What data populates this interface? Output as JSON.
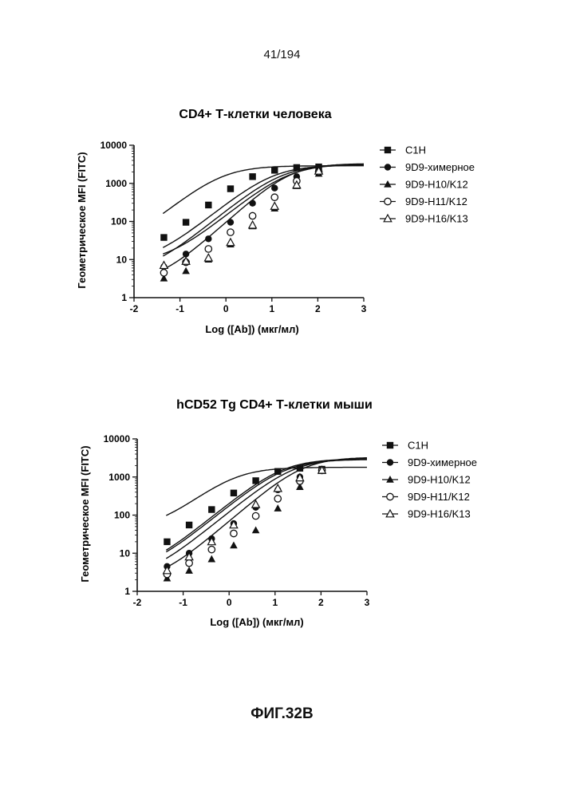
{
  "page_number": "41/194",
  "figure_label": "ФИГ.32В",
  "chart_data": [
    {
      "type": "line",
      "title": "CD4+ Т-клетки человека",
      "xlabel": "Log ([Ab]) (мкг/мл)",
      "ylabel": "Геометрическое MFI (FITC)",
      "xlim": [
        -2,
        3
      ],
      "ylim": [
        1,
        10000
      ],
      "yscale": "log",
      "xticks": [
        "-2",
        "-1",
        "0",
        "1",
        "2",
        "3"
      ],
      "yticks": [
        "1",
        "10",
        "100",
        "1000",
        "10000"
      ],
      "legend_position": "right",
      "series": [
        {
          "name": "C1H",
          "marker": "square-filled",
          "x": [
            -1.35,
            -0.87,
            -0.38,
            0.1,
            0.58,
            1.06,
            1.54,
            2.02
          ],
          "y": [
            38,
            95,
            270,
            720,
            1500,
            2200,
            2600,
            2700
          ],
          "fit": {
            "bottom": 14,
            "top": 2900,
            "ec50_log": -0.1,
            "hill": 1
          }
        },
        {
          "name": "9D9-химерное",
          "marker": "circle-filled",
          "x": [
            -1.35,
            -0.87,
            -0.38,
            0.1,
            0.58,
            1.06,
            1.54,
            2.02
          ],
          "y": [
            6.5,
            14,
            35,
            95,
            300,
            750,
            1500,
            2200
          ],
          "fit": {
            "bottom": 8,
            "top": 3000,
            "ec50_log": 1.0,
            "hill": 1
          }
        },
        {
          "name": "9D9-H10/K12",
          "marker": "triangle-filled",
          "x": [
            -1.35,
            -0.87,
            -0.38,
            0.1,
            0.58,
            1.06,
            1.54,
            2.02
          ],
          "y": [
            3.2,
            5,
            10,
            25,
            75,
            220,
            850,
            1800
          ],
          "fit": {
            "bottom": 2.5,
            "top": 3300,
            "ec50_log": 1.4,
            "hill": 1.1
          }
        },
        {
          "name": "9D9-H11/K12",
          "marker": "circle-open",
          "x": [
            -1.35,
            -0.87,
            -0.38,
            0.1,
            0.58,
            1.06,
            1.54,
            2.02
          ],
          "y": [
            4.5,
            8.5,
            19,
            52,
            140,
            430,
            1150,
            2000
          ],
          "fit": {
            "bottom": 4,
            "top": 3100,
            "ec50_log": 1.2,
            "hill": 1
          }
        },
        {
          "name": "9D9-H16/K13",
          "marker": "triangle-open",
          "x": [
            -1.35,
            -0.87,
            -0.38,
            0.1,
            0.58,
            1.06,
            1.54,
            2.02
          ],
          "y": [
            7,
            9,
            11,
            28,
            80,
            250,
            900,
            2100
          ],
          "fit": {
            "bottom": 8,
            "top": 3200,
            "ec50_log": 1.35,
            "hill": 1
          }
        }
      ]
    },
    {
      "type": "line",
      "title": "hCD52 Tg CD4+ Т-клетки мыши",
      "xlabel": "Log ([Ab]) (мкг/мл)",
      "ylabel": "Геометрическое MFI (FITC)",
      "xlim": [
        -2,
        3
      ],
      "ylim": [
        1,
        10000
      ],
      "yscale": "log",
      "xticks": [
        "-2",
        "-1",
        "0",
        "1",
        "2",
        "3"
      ],
      "yticks": [
        "1",
        "10",
        "100",
        "1000",
        "10000"
      ],
      "legend_position": "right",
      "series": [
        {
          "name": "C1H",
          "marker": "square-filled",
          "x": [
            -1.35,
            -0.87,
            -0.38,
            0.1,
            0.58,
            1.06,
            1.54,
            2.02
          ],
          "y": [
            20,
            55,
            140,
            380,
            800,
            1400,
            1700,
            1600
          ],
          "fit": {
            "bottom": 40,
            "top": 1800,
            "ec50_log": 0.1,
            "hill": 1
          }
        },
        {
          "name": "9D9-химерное",
          "marker": "circle-filled",
          "x": [
            -1.35,
            -0.87,
            -0.38,
            0.1,
            0.58,
            1.06,
            1.54,
            2.02
          ],
          "y": [
            4.5,
            10,
            24,
            60,
            160,
            460,
            1000,
            1500
          ],
          "fit": {
            "bottom": 3,
            "top": 2900,
            "ec50_log": 1.2,
            "hill": 1
          }
        },
        {
          "name": "9D9-H10/K12",
          "marker": "triangle-filled",
          "x": [
            -1.35,
            -0.87,
            -0.38,
            0.1,
            0.58,
            1.06,
            1.54,
            2.02
          ],
          "y": [
            2.2,
            3.5,
            7,
            16,
            40,
            150,
            550,
            1450
          ],
          "fit": {
            "bottom": 1.7,
            "top": 3300,
            "ec50_log": 1.6,
            "hill": 1.05
          }
        },
        {
          "name": "9D9-H11/K12",
          "marker": "circle-open",
          "x": [
            -1.35,
            -0.87,
            -0.38,
            0.1,
            0.58,
            1.06,
            1.54,
            2.02
          ],
          "y": [
            2.8,
            5.5,
            12.5,
            33,
            95,
            270,
            780,
            1500
          ],
          "fit": {
            "bottom": 2,
            "top": 3100,
            "ec50_log": 1.4,
            "hill": 1
          }
        },
        {
          "name": "9D9-H16/K13",
          "marker": "triangle-open",
          "x": [
            -1.35,
            -0.87,
            -0.38,
            0.1,
            0.58,
            1.06,
            1.54,
            2.02
          ],
          "y": [
            3.5,
            8,
            20,
            55,
            190,
            500,
            950,
            1500
          ],
          "fit": {
            "bottom": 3,
            "top": 3000,
            "ec50_log": 1.15,
            "hill": 1
          }
        }
      ]
    }
  ]
}
